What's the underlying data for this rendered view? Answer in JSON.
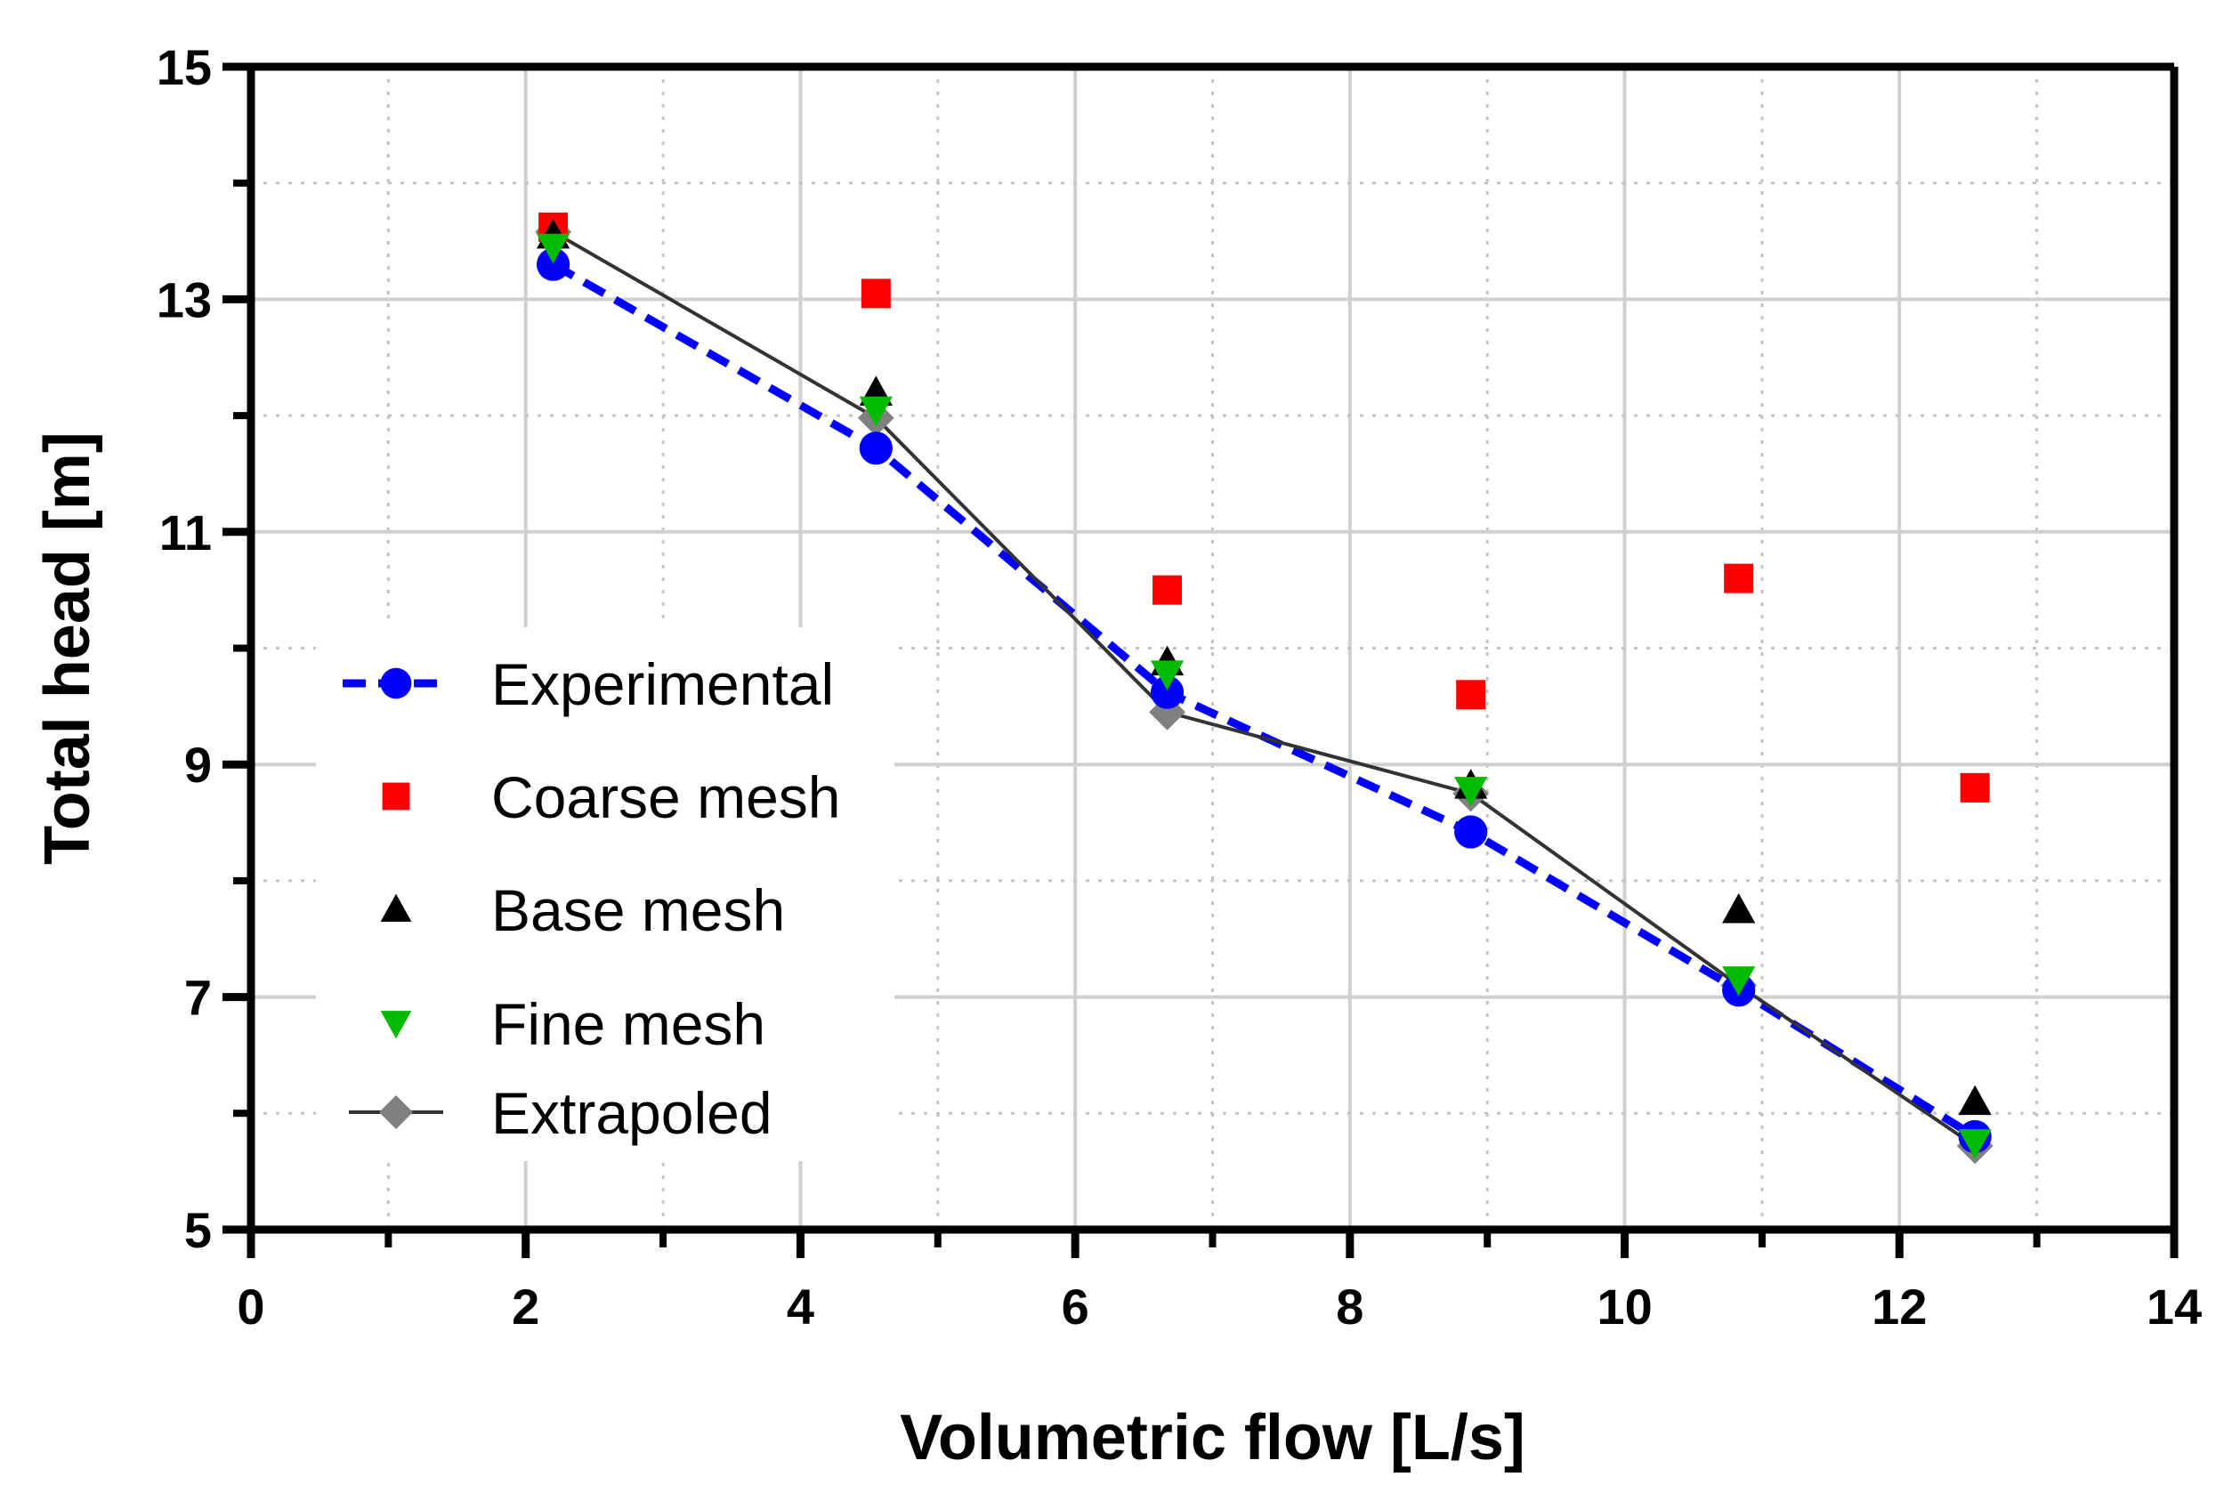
{
  "chart_data": {
    "type": "scatter",
    "title": "",
    "xlabel": "Volumetric flow [L/s]",
    "ylabel": "Total head [m]",
    "xlim": [
      0,
      14
    ],
    "ylim": [
      5,
      15
    ],
    "x_major_ticks": [
      0,
      2,
      4,
      6,
      8,
      10,
      12,
      14
    ],
    "x_minor_ticks": [
      1,
      3,
      5,
      7,
      9,
      11,
      13
    ],
    "y_major_ticks": [
      5,
      7,
      9,
      11,
      13,
      15
    ],
    "y_minor_ticks": [
      6,
      8,
      10,
      12,
      14
    ],
    "x_tick_labels": [
      "0",
      "2",
      "4",
      "6",
      "8",
      "10",
      "12",
      "14"
    ],
    "y_tick_labels": [
      "5",
      "7",
      "9",
      "11",
      "13",
      "15"
    ],
    "grid": true,
    "legend_position": "middle-left",
    "series": [
      {
        "name": "Experimental",
        "marker": "circle",
        "line": "dashed",
        "color": "#0000ff",
        "x": [
          2.2,
          4.55,
          6.67,
          8.88,
          10.83,
          12.55
        ],
        "y": [
          13.3,
          11.72,
          9.62,
          8.42,
          7.06,
          5.8
        ]
      },
      {
        "name": "Coarse mesh",
        "marker": "square",
        "line": "none",
        "color": "#ff0000",
        "x": [
          2.2,
          4.55,
          6.67,
          8.88,
          10.83,
          12.55
        ],
        "y": [
          13.62,
          13.05,
          10.5,
          9.6,
          10.6,
          8.8
        ]
      },
      {
        "name": "Base mesh",
        "marker": "triangle-up",
        "line": "none",
        "color": "#000000",
        "x": [
          2.2,
          4.55,
          6.67,
          8.88,
          10.83,
          12.55
        ],
        "y": [
          13.55,
          12.2,
          9.88,
          8.82,
          7.75,
          6.1
        ]
      },
      {
        "name": "Fine mesh",
        "marker": "triangle-down",
        "line": "none",
        "color": "#00bb00",
        "x": [
          2.2,
          4.55,
          6.67,
          8.88,
          10.83,
          12.55
        ],
        "y": [
          13.45,
          12.05,
          9.78,
          8.78,
          7.15,
          5.75
        ]
      },
      {
        "name": "Extrapoled",
        "marker": "diamond",
        "line": "solid",
        "color": "#808080",
        "line_color": "#333333",
        "x": [
          2.2,
          4.55,
          6.67,
          8.88,
          10.83,
          12.55
        ],
        "y": [
          13.58,
          11.98,
          9.45,
          8.75,
          7.1,
          5.72
        ]
      }
    ]
  }
}
